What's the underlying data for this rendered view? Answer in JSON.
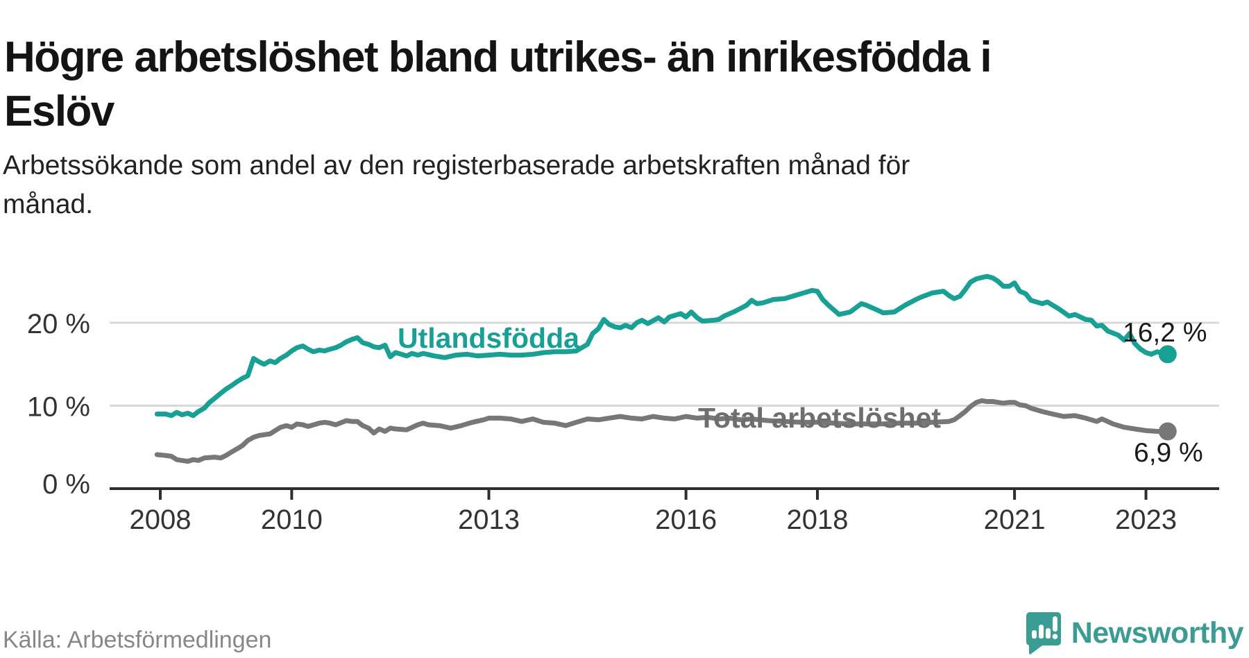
{
  "header": {
    "title": "Högre arbetslöshet bland utrikes- än inrikesfödda i Eslöv",
    "subtitle": "Arbetssökande som andel av den registerbaserade arbetskraften månad för månad."
  },
  "footer": {
    "source": "Källa: Arbetsförmedlingen",
    "brand": "Newsworthy"
  },
  "colors": {
    "foreign_line": "#18a094",
    "total_line": "#777777",
    "total_label": "#6e6e6e",
    "value_text": "#1a1a1a",
    "grid": "#d8d8d8",
    "axis": "#2e2e2e",
    "tick_text": "#333333",
    "brand_teal": "#3b9c94"
  },
  "chart_data": {
    "type": "line",
    "title": "Högre arbetslöshet bland utrikes- än inrikesfödda i Eslöv",
    "subtitle": "Arbetssökande som andel av den registerbaserade arbetskraften månad för månad.",
    "xlabel": "",
    "ylabel": "",
    "x_unit": "year (monthly observations)",
    "xlim": [
      2007.3,
      2023.75
    ],
    "ylim": [
      0,
      27
    ],
    "grid": "horizontal gridlines at 10 and 20",
    "legend_position": "inline labels on lines",
    "x_ticks": [
      "2008",
      "2010",
      "2013",
      "2016",
      "2018",
      "2021",
      "2023"
    ],
    "y_ticks": [
      {
        "value": 0,
        "label": "0 %"
      },
      {
        "value": 10,
        "label": "10 %"
      },
      {
        "value": 20,
        "label": "20 %"
      }
    ],
    "series": [
      {
        "name": "Utlandsfödda",
        "color": "#18a094",
        "end_value": 16.2,
        "end_label": "16,2 %",
        "points": [
          [
            2007.95,
            9.0
          ],
          [
            2008.08,
            9.0
          ],
          [
            2008.17,
            8.8
          ],
          [
            2008.25,
            9.2
          ],
          [
            2008.33,
            8.9
          ],
          [
            2008.42,
            9.1
          ],
          [
            2008.5,
            8.8
          ],
          [
            2008.58,
            9.3
          ],
          [
            2008.67,
            9.7
          ],
          [
            2008.75,
            10.4
          ],
          [
            2008.83,
            10.9
          ],
          [
            2008.92,
            11.5
          ],
          [
            2009.0,
            12.0
          ],
          [
            2009.08,
            12.4
          ],
          [
            2009.17,
            12.9
          ],
          [
            2009.25,
            13.3
          ],
          [
            2009.33,
            13.6
          ],
          [
            2009.42,
            15.7
          ],
          [
            2009.5,
            15.3
          ],
          [
            2009.58,
            15.0
          ],
          [
            2009.67,
            15.4
          ],
          [
            2009.75,
            15.2
          ],
          [
            2009.83,
            15.7
          ],
          [
            2009.92,
            16.1
          ],
          [
            2010.0,
            16.6
          ],
          [
            2010.08,
            17.0
          ],
          [
            2010.17,
            17.2
          ],
          [
            2010.25,
            16.8
          ],
          [
            2010.33,
            16.5
          ],
          [
            2010.42,
            16.7
          ],
          [
            2010.5,
            16.6
          ],
          [
            2010.58,
            16.8
          ],
          [
            2010.67,
            17.0
          ],
          [
            2010.75,
            17.3
          ],
          [
            2010.83,
            17.7
          ],
          [
            2010.92,
            18.0
          ],
          [
            2011.0,
            18.2
          ],
          [
            2011.08,
            17.6
          ],
          [
            2011.17,
            17.4
          ],
          [
            2011.25,
            17.1
          ],
          [
            2011.33,
            17.0
          ],
          [
            2011.42,
            17.3
          ],
          [
            2011.5,
            15.9
          ],
          [
            2011.58,
            16.4
          ],
          [
            2011.67,
            16.2
          ],
          [
            2011.75,
            16.0
          ],
          [
            2011.83,
            16.3
          ],
          [
            2011.92,
            16.1
          ],
          [
            2012.0,
            16.3
          ],
          [
            2012.17,
            16.0
          ],
          [
            2012.33,
            15.8
          ],
          [
            2012.5,
            16.1
          ],
          [
            2012.67,
            16.2
          ],
          [
            2012.83,
            16.0
          ],
          [
            2013.0,
            16.1
          ],
          [
            2013.17,
            16.2
          ],
          [
            2013.33,
            16.1
          ],
          [
            2013.5,
            16.1
          ],
          [
            2013.67,
            16.2
          ],
          [
            2013.83,
            16.4
          ],
          [
            2014.0,
            16.5
          ],
          [
            2014.17,
            16.5
          ],
          [
            2014.33,
            16.6
          ],
          [
            2014.5,
            17.4
          ],
          [
            2014.58,
            18.7
          ],
          [
            2014.67,
            19.3
          ],
          [
            2014.75,
            20.4
          ],
          [
            2014.83,
            19.8
          ],
          [
            2014.92,
            19.5
          ],
          [
            2015.0,
            19.4
          ],
          [
            2015.08,
            19.7
          ],
          [
            2015.17,
            19.4
          ],
          [
            2015.25,
            20.0
          ],
          [
            2015.33,
            20.3
          ],
          [
            2015.42,
            19.9
          ],
          [
            2015.58,
            20.6
          ],
          [
            2015.67,
            20.1
          ],
          [
            2015.75,
            20.7
          ],
          [
            2015.92,
            21.1
          ],
          [
            2016.0,
            20.7
          ],
          [
            2016.08,
            21.3
          ],
          [
            2016.17,
            20.6
          ],
          [
            2016.25,
            20.2
          ],
          [
            2016.42,
            20.3
          ],
          [
            2016.5,
            20.4
          ],
          [
            2016.58,
            20.8
          ],
          [
            2016.75,
            21.4
          ],
          [
            2016.92,
            22.1
          ],
          [
            2017.0,
            22.7
          ],
          [
            2017.08,
            22.3
          ],
          [
            2017.17,
            22.4
          ],
          [
            2017.33,
            22.8
          ],
          [
            2017.5,
            22.9
          ],
          [
            2017.58,
            23.1
          ],
          [
            2017.75,
            23.5
          ],
          [
            2017.92,
            23.9
          ],
          [
            2018.0,
            23.8
          ],
          [
            2018.08,
            22.8
          ],
          [
            2018.17,
            22.1
          ],
          [
            2018.33,
            21.0
          ],
          [
            2018.5,
            21.3
          ],
          [
            2018.67,
            22.3
          ],
          [
            2018.75,
            22.1
          ],
          [
            2018.92,
            21.5
          ],
          [
            2019.0,
            21.2
          ],
          [
            2019.17,
            21.3
          ],
          [
            2019.33,
            22.1
          ],
          [
            2019.5,
            22.8
          ],
          [
            2019.58,
            23.1
          ],
          [
            2019.75,
            23.6
          ],
          [
            2019.92,
            23.8
          ],
          [
            2020.0,
            23.3
          ],
          [
            2020.08,
            22.9
          ],
          [
            2020.17,
            23.2
          ],
          [
            2020.25,
            24.0
          ],
          [
            2020.33,
            24.9
          ],
          [
            2020.42,
            25.3
          ],
          [
            2020.58,
            25.6
          ],
          [
            2020.67,
            25.4
          ],
          [
            2020.75,
            25.0
          ],
          [
            2020.83,
            24.4
          ],
          [
            2020.92,
            24.4
          ],
          [
            2021.0,
            24.8
          ],
          [
            2021.08,
            23.8
          ],
          [
            2021.17,
            23.5
          ],
          [
            2021.25,
            22.7
          ],
          [
            2021.42,
            22.3
          ],
          [
            2021.5,
            22.5
          ],
          [
            2021.67,
            21.7
          ],
          [
            2021.83,
            20.8
          ],
          [
            2021.92,
            21.0
          ],
          [
            2022.08,
            20.4
          ],
          [
            2022.17,
            20.3
          ],
          [
            2022.25,
            19.6
          ],
          [
            2022.33,
            19.7
          ],
          [
            2022.42,
            19.0
          ],
          [
            2022.58,
            18.5
          ],
          [
            2022.67,
            17.9
          ],
          [
            2022.75,
            18.7
          ],
          [
            2022.83,
            17.5
          ],
          [
            2022.92,
            16.8
          ],
          [
            2023.0,
            16.4
          ],
          [
            2023.08,
            16.2
          ],
          [
            2023.17,
            16.5
          ],
          [
            2023.33,
            16.2
          ]
        ]
      },
      {
        "name": "Total arbetslöshet",
        "color": "#777777",
        "end_value": 6.9,
        "end_label": "6,9 %",
        "points": [
          [
            2007.95,
            4.1
          ],
          [
            2008.08,
            4.0
          ],
          [
            2008.17,
            3.9
          ],
          [
            2008.25,
            3.5
          ],
          [
            2008.33,
            3.4
          ],
          [
            2008.42,
            3.3
          ],
          [
            2008.5,
            3.5
          ],
          [
            2008.58,
            3.4
          ],
          [
            2008.67,
            3.7
          ],
          [
            2008.83,
            3.8
          ],
          [
            2008.92,
            3.7
          ],
          [
            2009.0,
            4.0
          ],
          [
            2009.08,
            4.4
          ],
          [
            2009.17,
            4.8
          ],
          [
            2009.25,
            5.2
          ],
          [
            2009.33,
            5.8
          ],
          [
            2009.42,
            6.2
          ],
          [
            2009.5,
            6.4
          ],
          [
            2009.58,
            6.5
          ],
          [
            2009.67,
            6.6
          ],
          [
            2009.75,
            7.0
          ],
          [
            2009.83,
            7.4
          ],
          [
            2009.92,
            7.6
          ],
          [
            2010.0,
            7.4
          ],
          [
            2010.08,
            7.8
          ],
          [
            2010.17,
            7.7
          ],
          [
            2010.25,
            7.5
          ],
          [
            2010.42,
            7.9
          ],
          [
            2010.5,
            8.0
          ],
          [
            2010.58,
            7.9
          ],
          [
            2010.67,
            7.7
          ],
          [
            2010.83,
            8.2
          ],
          [
            2010.92,
            8.1
          ],
          [
            2011.0,
            8.1
          ],
          [
            2011.08,
            7.6
          ],
          [
            2011.17,
            7.3
          ],
          [
            2011.25,
            6.7
          ],
          [
            2011.33,
            7.2
          ],
          [
            2011.42,
            6.9
          ],
          [
            2011.5,
            7.3
          ],
          [
            2011.58,
            7.2
          ],
          [
            2011.75,
            7.1
          ],
          [
            2011.92,
            7.7
          ],
          [
            2012.0,
            7.9
          ],
          [
            2012.08,
            7.7
          ],
          [
            2012.25,
            7.6
          ],
          [
            2012.42,
            7.3
          ],
          [
            2012.58,
            7.6
          ],
          [
            2012.75,
            8.0
          ],
          [
            2012.92,
            8.3
          ],
          [
            2013.0,
            8.5
          ],
          [
            2013.17,
            8.5
          ],
          [
            2013.33,
            8.4
          ],
          [
            2013.5,
            8.1
          ],
          [
            2013.67,
            8.4
          ],
          [
            2013.83,
            8.0
          ],
          [
            2014.0,
            7.9
          ],
          [
            2014.17,
            7.6
          ],
          [
            2014.33,
            8.0
          ],
          [
            2014.5,
            8.4
          ],
          [
            2014.67,
            8.3
          ],
          [
            2014.83,
            8.5
          ],
          [
            2015.0,
            8.7
          ],
          [
            2015.17,
            8.5
          ],
          [
            2015.33,
            8.4
          ],
          [
            2015.5,
            8.7
          ],
          [
            2015.67,
            8.5
          ],
          [
            2015.83,
            8.4
          ],
          [
            2016.0,
            8.7
          ],
          [
            2016.17,
            8.5
          ],
          [
            2016.33,
            8.6
          ],
          [
            2016.5,
            8.4
          ],
          [
            2016.67,
            8.5
          ],
          [
            2016.83,
            8.3
          ],
          [
            2017.0,
            8.4
          ],
          [
            2017.25,
            8.2
          ],
          [
            2017.5,
            8.1
          ],
          [
            2017.75,
            8.0
          ],
          [
            2018.0,
            8.0
          ],
          [
            2018.25,
            7.9
          ],
          [
            2018.5,
            7.8
          ],
          [
            2018.75,
            7.8
          ],
          [
            2019.0,
            7.8
          ],
          [
            2019.25,
            7.9
          ],
          [
            2019.5,
            7.9
          ],
          [
            2019.75,
            8.0
          ],
          [
            2020.0,
            8.1
          ],
          [
            2020.08,
            8.3
          ],
          [
            2020.17,
            8.8
          ],
          [
            2020.25,
            9.3
          ],
          [
            2020.33,
            9.9
          ],
          [
            2020.42,
            10.4
          ],
          [
            2020.5,
            10.6
          ],
          [
            2020.58,
            10.5
          ],
          [
            2020.67,
            10.5
          ],
          [
            2020.75,
            10.4
          ],
          [
            2020.83,
            10.3
          ],
          [
            2020.92,
            10.4
          ],
          [
            2021.0,
            10.4
          ],
          [
            2021.08,
            10.1
          ],
          [
            2021.17,
            10.0
          ],
          [
            2021.25,
            9.7
          ],
          [
            2021.42,
            9.3
          ],
          [
            2021.58,
            9.0
          ],
          [
            2021.75,
            8.7
          ],
          [
            2021.92,
            8.8
          ],
          [
            2022.08,
            8.5
          ],
          [
            2022.25,
            8.1
          ],
          [
            2022.33,
            8.4
          ],
          [
            2022.5,
            7.8
          ],
          [
            2022.67,
            7.4
          ],
          [
            2022.83,
            7.2
          ],
          [
            2023.0,
            7.0
          ],
          [
            2023.17,
            6.9
          ],
          [
            2023.33,
            6.9
          ]
        ]
      }
    ]
  }
}
